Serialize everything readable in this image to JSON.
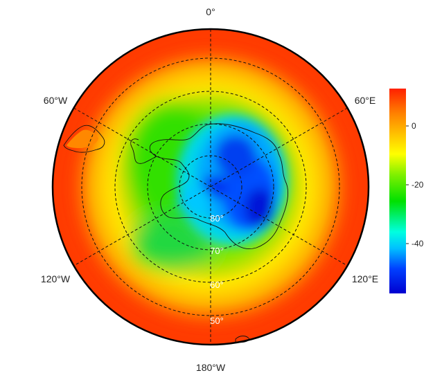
{
  "map": {
    "projection": "south-polar-stereographic",
    "variable_colors": {
      "low": "#0000d0",
      "mid": "#00e000",
      "high": "#ff2000"
    },
    "lon_labels": [
      {
        "name": "lon-0",
        "text": "0°"
      },
      {
        "name": "lon-60e",
        "text": "60°E"
      },
      {
        "name": "lon-120e",
        "text": "120°E"
      },
      {
        "name": "lon-180w",
        "text": "180°W"
      },
      {
        "name": "lon-120w",
        "text": "120°W"
      },
      {
        "name": "lon-60w",
        "text": "60°W"
      }
    ],
    "lat_labels": [
      {
        "name": "lat-80",
        "text": "80°"
      },
      {
        "name": "lat-70",
        "text": "70°"
      },
      {
        "name": "lat-60",
        "text": "60°"
      },
      {
        "name": "lat-50",
        "text": "50°"
      }
    ],
    "graticule": {
      "latitudes": [
        80,
        70,
        60,
        50
      ],
      "longitudes_step_deg": 30
    }
  },
  "colorbar": {
    "ticks": [
      "0",
      "-20",
      "-40"
    ],
    "tick_values": [
      0,
      -20,
      -40
    ],
    "range": [
      -56,
      13
    ],
    "colors": [
      "#0000d0",
      "#0040ff",
      "#00c0ff",
      "#00ffe0",
      "#00e000",
      "#80f000",
      "#ffff00",
      "#ffc000",
      "#ff8000",
      "#ff2000"
    ]
  }
}
